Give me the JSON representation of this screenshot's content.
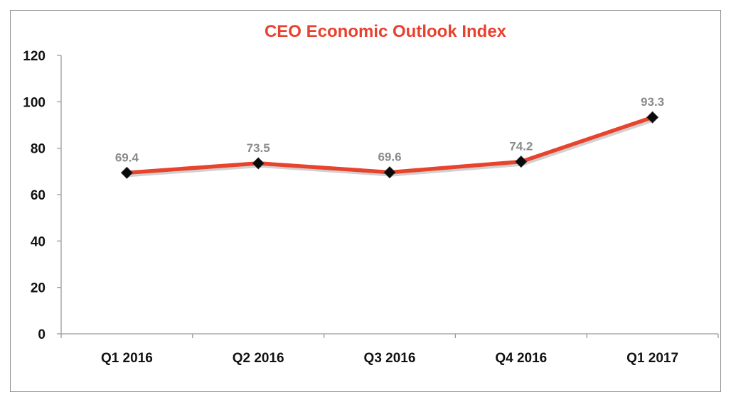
{
  "chart_data": {
    "type": "line",
    "title": "CEO Economic Outlook Index",
    "xlabel": "",
    "ylabel": "",
    "categories": [
      "Q1 2016",
      "Q2 2016",
      "Q3 2016",
      "Q4 2016",
      "Q1 2017"
    ],
    "series": [
      {
        "values": [
          69.4,
          73.5,
          69.6,
          74.2,
          93.3
        ],
        "labels": [
          "69.4",
          "73.5",
          "69.6",
          "74.2",
          "93.3"
        ]
      }
    ],
    "ylim": [
      0,
      120
    ],
    "yticks": [
      0,
      20,
      40,
      60,
      80,
      100,
      120
    ],
    "ytick_labels": [
      "0",
      "20",
      "40",
      "60",
      "80",
      "100",
      "120"
    ],
    "grid": false,
    "legend": "none",
    "colors": {
      "title": "#e8412f",
      "line": "#e8432c",
      "marker": "#0a0a0a",
      "data_label": "#8a8a8a",
      "axis": "#9a9a9a"
    }
  }
}
